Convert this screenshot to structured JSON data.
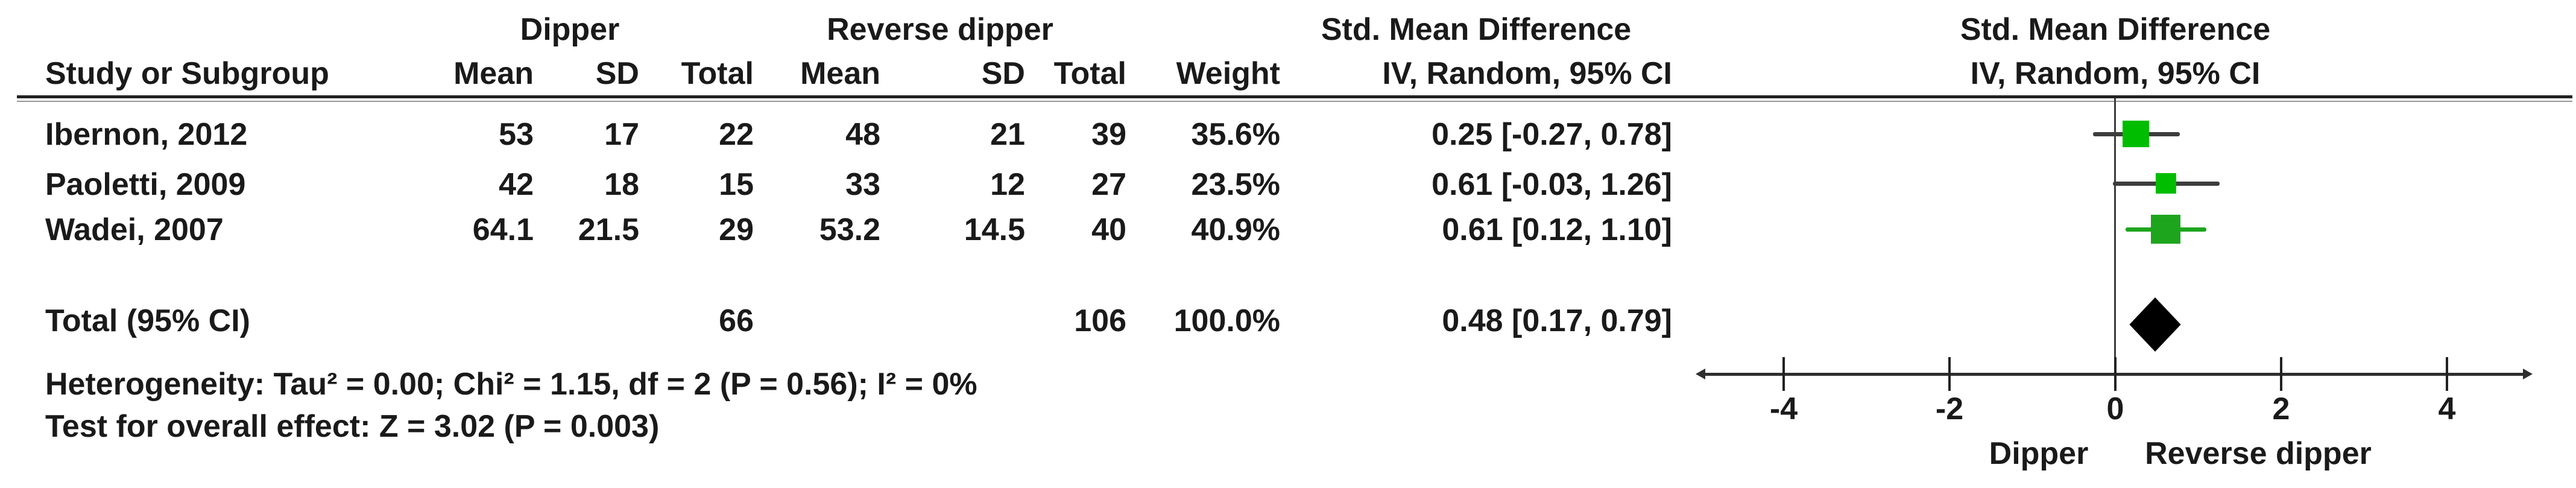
{
  "table": {
    "group_headers": {
      "dipper": "Dipper",
      "reverse_dipper": "Reverse dipper",
      "smd_left": "Std. Mean Difference",
      "smd_right": "Std. Mean Difference"
    },
    "columns": {
      "study": "Study or Subgroup",
      "mean1": "Mean",
      "sd1": "SD",
      "total1": "Total",
      "mean2": "Mean",
      "sd2": "SD",
      "total2": "Total",
      "weight": "Weight",
      "ci": "IV, Random, 95% CI",
      "ci_right": "IV, Random, 95% CI"
    },
    "rows": [
      {
        "study": "Ibernon, 2012",
        "mean1": "53",
        "sd1": "17",
        "total1": "22",
        "mean2": "48",
        "sd2": "21",
        "total2": "39",
        "weight": "35.6%",
        "ci": "0.25 [-0.27, 0.78]"
      },
      {
        "study": "Paoletti, 2009",
        "mean1": "42",
        "sd1": "18",
        "total1": "15",
        "mean2": "33",
        "sd2": "12",
        "total2": "27",
        "weight": "23.5%",
        "ci": "0.61 [-0.03, 1.26]"
      },
      {
        "study": "Wadei, 2007",
        "mean1": "64.1",
        "sd1": "21.5",
        "total1": "29",
        "mean2": "53.2",
        "sd2": "14.5",
        "total2": "40",
        "weight": "40.9%",
        "ci": "0.61 [0.12, 1.10]"
      }
    ],
    "total_row": {
      "label": "Total (95% CI)",
      "total1": "66",
      "total2": "106",
      "weight": "100.0%",
      "ci": "0.48 [0.17, 0.79]"
    },
    "heterogeneity": "Heterogeneity: Tau² = 0.00; Chi² = 1.15, df = 2 (P = 0.56); I² = 0%",
    "overall_effect": "Test for overall effect: Z = 3.02 (P = 0.003)"
  },
  "chart_data": {
    "type": "forest",
    "title": "Std. Mean Difference, IV, Random, 95% CI",
    "x_axis": {
      "ticks": [
        -4,
        -2,
        0,
        2,
        4
      ],
      "range": [
        -4.97,
        4.97
      ],
      "zero_line": 0,
      "label_left": "Dipper",
      "label_right": "Reverse dipper"
    },
    "studies": [
      {
        "name": "Ibernon, 2012",
        "smd": 0.25,
        "ci_low": -0.27,
        "ci_high": 0.78,
        "weight_pct": 35.6,
        "marker_color": "#00bd00",
        "line_color": "#3d3d3d"
      },
      {
        "name": "Paoletti, 2009",
        "smd": 0.61,
        "ci_low": -0.03,
        "ci_high": 1.26,
        "weight_pct": 23.5,
        "marker_color": "#00bd00",
        "line_color": "#3d3d3d"
      },
      {
        "name": "Wadei, 2007",
        "smd": 0.61,
        "ci_low": 0.12,
        "ci_high": 1.1,
        "weight_pct": 40.9,
        "marker_color": "#1ea51e",
        "line_color": "#1ea51e"
      }
    ],
    "total": {
      "smd": 0.48,
      "ci_low": 0.17,
      "ci_high": 0.79,
      "color": "#000000"
    }
  }
}
